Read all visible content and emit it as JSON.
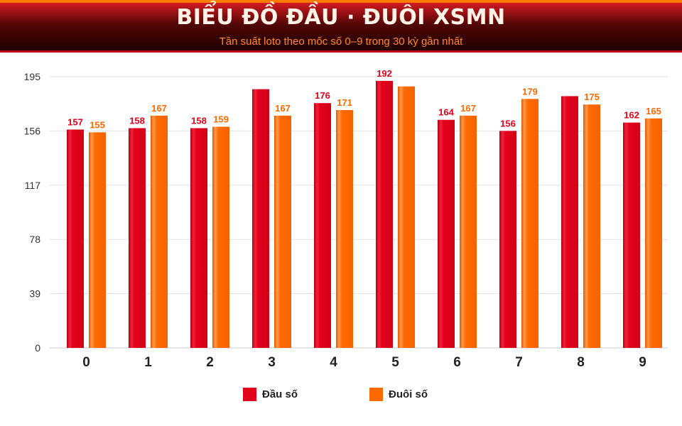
{
  "header": {
    "title": "BIỂU ĐỒ ĐẦU · ĐUÔI XSMN",
    "subtitle": "Tần suất loto theo mốc số 0–9 trong 30 kỳ gần nhất"
  },
  "colors": {
    "dau": "#e3001b",
    "duoi": "#ff6a00",
    "grid": "#e3e3e3"
  },
  "chart_data": {
    "type": "bar",
    "categories": [
      "0",
      "1",
      "2",
      "3",
      "4",
      "5",
      "6",
      "7",
      "8",
      "9"
    ],
    "series": [
      {
        "name": "Đầu số",
        "values": [
          157,
          158,
          158,
          186,
          176,
          192,
          164,
          156,
          181,
          162
        ],
        "labels": [
          "157",
          "158",
          "158",
          "",
          "176",
          "192",
          "164",
          "156",
          "",
          "162"
        ]
      },
      {
        "name": "Đuôi số",
        "values": [
          155,
          167,
          159,
          167,
          171,
          188,
          167,
          179,
          175,
          165
        ],
        "labels": [
          "155",
          "167",
          "159",
          "167",
          "171",
          "",
          "167",
          "179",
          "175",
          "165"
        ]
      }
    ],
    "yticks": [
      "0",
      "39",
      "78",
      "117",
      "156",
      "195"
    ],
    "ylim": [
      0,
      195
    ],
    "grid": true,
    "legend": "bottom-center"
  },
  "legend": {
    "items": [
      "Đầu số",
      "Đuôi số"
    ]
  }
}
